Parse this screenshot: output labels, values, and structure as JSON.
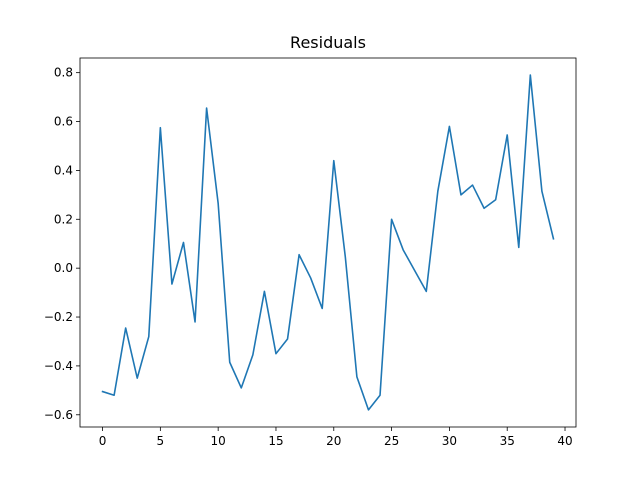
{
  "chart_data": {
    "type": "line",
    "title": "Residuals",
    "xlabel": "",
    "ylabel": "",
    "xlim": [
      -1.95,
      40.95
    ],
    "ylim": [
      -0.65,
      0.86
    ],
    "xticks": [
      0,
      5,
      10,
      15,
      20,
      25,
      30,
      35,
      40
    ],
    "yticks": [
      -0.6,
      -0.4,
      -0.2,
      0.0,
      0.2,
      0.4,
      0.6,
      0.8
    ],
    "ytick_labels": [
      "−0.6",
      "−0.4",
      "−0.2",
      "0.0",
      "0.2",
      "0.4",
      "0.6",
      "0.8"
    ],
    "grid": false,
    "legend": "none",
    "series": [
      {
        "color": "#1f77b4",
        "x": [
          0,
          1,
          2,
          3,
          4,
          5,
          6,
          7,
          8,
          9,
          10,
          11,
          12,
          13,
          14,
          15,
          16,
          17,
          18,
          19,
          20,
          21,
          22,
          23,
          24,
          25,
          26,
          27,
          28,
          29,
          30,
          31,
          32,
          33,
          34,
          35,
          36,
          37,
          38,
          39
        ],
        "values": [
          -0.505,
          -0.52,
          -0.245,
          -0.45,
          -0.28,
          0.575,
          -0.065,
          0.105,
          -0.22,
          0.655,
          0.265,
          -0.385,
          -0.49,
          -0.355,
          -0.095,
          -0.35,
          -0.29,
          0.055,
          -0.04,
          -0.165,
          0.44,
          0.045,
          -0.445,
          -0.58,
          -0.52,
          0.2,
          0.075,
          -0.01,
          -0.095,
          0.315,
          0.58,
          0.3,
          0.34,
          0.245,
          0.28,
          0.545,
          0.085,
          0.79,
          0.315,
          0.12
        ]
      }
    ]
  }
}
